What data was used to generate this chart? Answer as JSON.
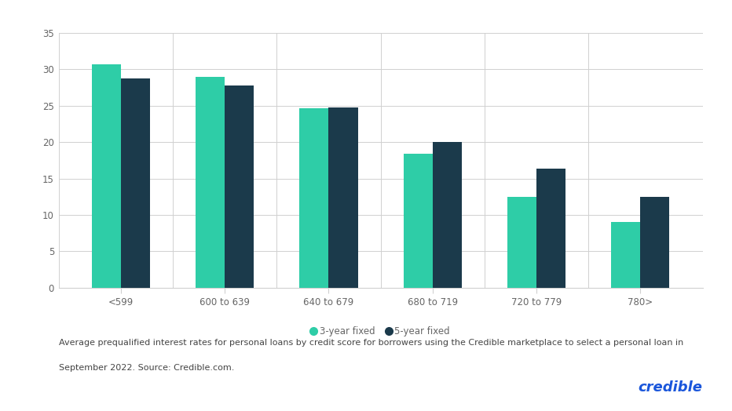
{
  "categories": [
    "<599",
    "600 to 639",
    "640 to 679",
    "680 to 719",
    "720 to 779",
    "780>"
  ],
  "three_year": [
    30.7,
    29.0,
    24.6,
    18.4,
    12.5,
    9.0
  ],
  "five_year": [
    28.7,
    27.8,
    24.8,
    20.0,
    16.3,
    12.5
  ],
  "color_3year": "#2ecda7",
  "color_5year": "#1b3a4b",
  "ylim": [
    0,
    35
  ],
  "yticks": [
    0,
    5,
    10,
    15,
    20,
    25,
    30,
    35
  ],
  "legend_3year": "3-year fixed",
  "legend_5year": "5-year fixed",
  "footnote_line1": "Average prequalified interest rates for personal loans by credit score for borrowers using the Credible marketplace to select a personal loan in",
  "footnote_line2": "September 2022. Source: Credible.com.",
  "brand": "credible",
  "brand_color": "#1a56db",
  "background_color": "#ffffff",
  "bar_width": 0.28,
  "grid_color": "#d0d0d0",
  "tick_label_color": "#666666",
  "footnote_color": "#444444",
  "footnote_fontsize": 8.0,
  "brand_fontsize": 13
}
